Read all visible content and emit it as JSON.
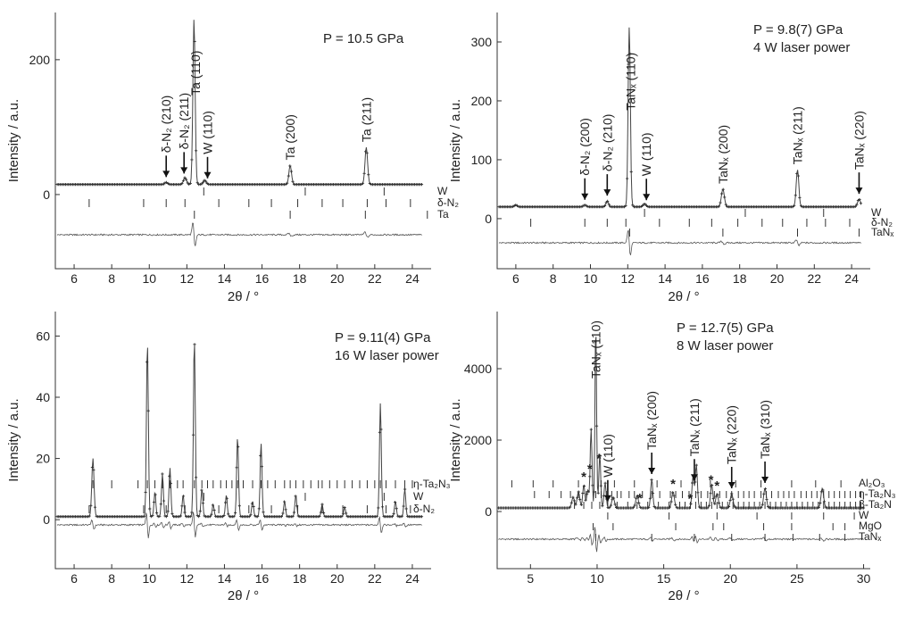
{
  "figure": {
    "x_axis_label": "2θ / °",
    "y_axis_label": "Intensity / a.u."
  },
  "chart_data": [
    {
      "type": "line",
      "panel": "top-left",
      "annotation": [
        "P = 10.5 GPa"
      ],
      "xlim": [
        5,
        25
      ],
      "ylim": [
        -110,
        270
      ],
      "x_ticks": [
        6,
        8,
        10,
        12,
        14,
        16,
        18,
        20,
        22,
        24
      ],
      "y_ticks": [
        0,
        200
      ],
      "baseline": 15,
      "diff_offset": -85,
      "peaks": [
        [
          10.9,
          3,
          0.08
        ],
        [
          11.9,
          10,
          0.08
        ],
        [
          12.38,
          245,
          0.06
        ],
        [
          12.95,
          6,
          0.08
        ],
        [
          17.5,
          28,
          0.07
        ],
        [
          21.55,
          55,
          0.07
        ]
      ],
      "peak_labels": [
        {
          "label": "δ-N₂ (210)",
          "x": 10.9,
          "arrow": true
        },
        {
          "label": "δ-N₂ (211)",
          "x": 11.85,
          "arrow": true
        },
        {
          "label": "Ta (110)",
          "x": 12.45,
          "arrow": false
        },
        {
          "label": "W (110)",
          "x": 13.1,
          "arrow": true
        },
        {
          "label": "Ta (200)",
          "x": 17.5,
          "arrow": false
        },
        {
          "label": "Ta (211)",
          "x": 21.55,
          "arrow": false
        }
      ],
      "phases": [
        {
          "name": "W",
          "ticks": [
            12.9,
            18.3,
            22.5
          ]
        },
        {
          "name": "δ-N₂",
          "ticks": [
            6.8,
            9.7,
            10.9,
            11.9,
            13.7,
            15.3,
            16.5,
            17.9,
            19.2,
            20.3,
            21.6,
            22.6,
            23.9
          ]
        },
        {
          "name": "Ta",
          "ticks": [
            12.4,
            17.5,
            21.5,
            24.8
          ]
        }
      ]
    },
    {
      "type": "line",
      "panel": "top-right",
      "annotation": [
        "P = 9.8(7) GPa",
        "4 W laser power"
      ],
      "xlim": [
        5,
        25
      ],
      "ylim": [
        -85,
        350
      ],
      "x_ticks": [
        6,
        8,
        10,
        12,
        14,
        16,
        18,
        20,
        22,
        24
      ],
      "y_ticks": [
        0,
        100,
        200,
        300
      ],
      "baseline": 20,
      "diff_offset": -70,
      "peaks": [
        [
          6.0,
          3,
          0.08
        ],
        [
          9.7,
          3,
          0.08
        ],
        [
          10.9,
          10,
          0.07
        ],
        [
          12.08,
          305,
          0.06
        ],
        [
          12.9,
          5,
          0.08
        ],
        [
          17.1,
          30,
          0.08
        ],
        [
          21.1,
          63,
          0.07
        ],
        [
          24.4,
          13,
          0.08
        ]
      ],
      "peak_labels": [
        {
          "label": "δ-N₂ (200)",
          "x": 9.7,
          "arrow": true
        },
        {
          "label": "δ-N₂ (210)",
          "x": 10.9,
          "arrow": true
        },
        {
          "label": "TaNₓ (110)",
          "x": 12.15,
          "arrow": false
        },
        {
          "label": "W (110)",
          "x": 13.0,
          "arrow": true
        },
        {
          "label": "TaNₓ (200)",
          "x": 17.1,
          "arrow": false
        },
        {
          "label": "TaNₓ (211)",
          "x": 21.1,
          "arrow": false
        },
        {
          "label": "TaNₓ (220)",
          "x": 24.4,
          "arrow": true
        }
      ],
      "phases": [
        {
          "name": "W",
          "ticks": [
            12.9,
            18.3,
            22.5
          ]
        },
        {
          "name": "δ-N₂",
          "ticks": [
            6.8,
            9.7,
            10.9,
            11.9,
            13.7,
            15.3,
            16.5,
            17.9,
            19.2,
            20.3,
            21.6,
            22.6,
            23.9
          ]
        },
        {
          "name": "TaNₓ",
          "ticks": [
            12.1,
            17.1,
            21.1,
            24.4
          ]
        }
      ]
    },
    {
      "type": "line",
      "panel": "bottom-left",
      "annotation": [
        "P = 9.11(4) GPa",
        "16 W laser power"
      ],
      "xlim": [
        5,
        25
      ],
      "ylim": [
        -16,
        68
      ],
      "x_ticks": [
        6,
        8,
        10,
        12,
        14,
        16,
        18,
        20,
        22,
        24
      ],
      "y_ticks": [
        0,
        20,
        40,
        60
      ],
      "baseline": 1,
      "diff_offset": -12,
      "peaks": [
        [
          7.0,
          19,
          0.06
        ],
        [
          9.9,
          57,
          0.05
        ],
        [
          10.3,
          8,
          0.05
        ],
        [
          10.7,
          14,
          0.05
        ],
        [
          11.1,
          16,
          0.05
        ],
        [
          11.8,
          7,
          0.05
        ],
        [
          12.4,
          58,
          0.05
        ],
        [
          12.8,
          9,
          0.05
        ],
        [
          13.4,
          4,
          0.05
        ],
        [
          14.1,
          7,
          0.05
        ],
        [
          14.7,
          26,
          0.05
        ],
        [
          15.5,
          5,
          0.05
        ],
        [
          15.95,
          24,
          0.05
        ],
        [
          17.2,
          5,
          0.05
        ],
        [
          17.8,
          7,
          0.05
        ],
        [
          19.2,
          4,
          0.05
        ],
        [
          20.4,
          3,
          0.05
        ],
        [
          22.3,
          37,
          0.05
        ],
        [
          23.1,
          5,
          0.05
        ],
        [
          23.6,
          9,
          0.05
        ]
      ],
      "peak_labels": [],
      "phases": [
        {
          "name": "η-Ta₂N₃",
          "ticks": [
            7.0,
            8.0,
            9.4,
            9.9,
            10.3,
            10.7,
            11.1,
            11.5,
            11.8,
            12.4,
            12.8,
            13.1,
            13.4,
            13.8,
            14.1,
            14.4,
            14.7,
            15.0,
            15.5,
            15.95,
            16.3,
            16.7,
            17.2,
            17.5,
            17.8,
            18.2,
            18.6,
            19.0,
            19.2,
            19.6,
            20.0,
            20.4,
            20.8,
            21.2,
            21.6,
            22.0,
            22.3,
            22.6,
            23.1,
            23.6,
            24.0
          ]
        },
        {
          "name": "W",
          "ticks": [
            12.9,
            18.3,
            22.5
          ]
        },
        {
          "name": "δ-N₂",
          "ticks": [
            6.8,
            9.7,
            10.9,
            11.9,
            13.7,
            15.3,
            16.5,
            17.9,
            19.2,
            20.3,
            21.6,
            22.6,
            23.9
          ]
        }
      ]
    },
    {
      "type": "line",
      "panel": "bottom-right",
      "annotation": [
        "P = 12.7(5) GPa",
        "8 W laser power"
      ],
      "xlim": [
        2.5,
        30.5
      ],
      "ylim": [
        -1600,
        5600
      ],
      "x_ticks": [
        5,
        10,
        15,
        20,
        25,
        30
      ],
      "y_ticks": [
        0,
        2000,
        4000
      ],
      "baseline": 100,
      "diff_offset": -1300,
      "peaks": [
        [
          8.2,
          300,
          0.1
        ],
        [
          8.6,
          450,
          0.1
        ],
        [
          9.0,
          650,
          0.08
        ],
        [
          9.3,
          500,
          0.08
        ],
        [
          9.55,
          2200,
          0.07
        ],
        [
          9.9,
          5200,
          0.06
        ],
        [
          10.2,
          1500,
          0.07
        ],
        [
          10.6,
          700,
          0.08
        ],
        [
          11.2,
          300,
          0.1
        ],
        [
          13.0,
          350,
          0.1
        ],
        [
          14.1,
          800,
          0.08
        ],
        [
          15.7,
          450,
          0.1
        ],
        [
          17.2,
          900,
          0.08
        ],
        [
          17.45,
          1200,
          0.08
        ],
        [
          18.6,
          650,
          0.09
        ],
        [
          19.0,
          400,
          0.1
        ],
        [
          20.1,
          400,
          0.1
        ],
        [
          22.6,
          550,
          0.1
        ],
        [
          26.9,
          550,
          0.1
        ]
      ],
      "peak_labels": [
        {
          "label": "TaNₓ (110)",
          "x": 9.9,
          "arrow": false
        },
        {
          "label": "W (110)",
          "x": 10.8,
          "arrow": true
        },
        {
          "label": "TaNₓ (200)",
          "x": 14.1,
          "arrow": true
        },
        {
          "label": "TaNₓ (211)",
          "x": 17.3,
          "arrow": true
        },
        {
          "label": "TaNₓ (220)",
          "x": 20.1,
          "arrow": true
        },
        {
          "label": "TaNₓ (310)",
          "x": 22.6,
          "arrow": true
        }
      ],
      "star_positions": [
        9.0,
        9.45,
        10.15,
        13.2,
        15.7,
        17.0,
        18.55,
        19.0
      ],
      "phases": [
        {
          "name": "Al₂O₃",
          "ticks": [
            3.6,
            5.2,
            6.7,
            8.6,
            10.3,
            11.3,
            12.8,
            14.5,
            16.3,
            18.5,
            20.4,
            22.3,
            24.6,
            26.4,
            28.3
          ]
        },
        {
          "name": "η-Ta₂N₃",
          "ticks": [
            5.3,
            6.4,
            7.3,
            8.0,
            8.6,
            9.2,
            9.9,
            10.3,
            10.7,
            11.1,
            11.5,
            11.8,
            12.4,
            12.8,
            13.4,
            14.1,
            14.7,
            15.5,
            15.9,
            16.4,
            16.9,
            17.4,
            17.8,
            18.3,
            18.8,
            19.2,
            19.7,
            20.1,
            20.6,
            21.0,
            21.4,
            21.8,
            22.3,
            22.7,
            23.1,
            23.6,
            24.0,
            24.4,
            24.8,
            25.3,
            25.7,
            26.1,
            26.5,
            27.0,
            27.4,
            27.8,
            28.2,
            28.6,
            29.0,
            29.4,
            29.8
          ]
        },
        {
          "name": "β-Ta₂N",
          "ticks": [
            8.3,
            9.0,
            9.6,
            10.2,
            10.8,
            11.5,
            12.3,
            13.0,
            13.8,
            14.6,
            15.4,
            16.2,
            16.6,
            17.0,
            17.4,
            17.8,
            18.2,
            18.6,
            19.0,
            19.4,
            19.8,
            20.2,
            20.6,
            21.0,
            21.4,
            21.8,
            22.2,
            22.6,
            23.0,
            23.4,
            23.8,
            24.2,
            24.6,
            25.0,
            25.4,
            25.8,
            26.2,
            26.6,
            27.0,
            27.4,
            27.8,
            28.2,
            28.6,
            29.0,
            29.4,
            29.8
          ]
        },
        {
          "name": "W",
          "ticks": [
            10.8,
            15.4,
            19.0,
            22.0,
            24.6,
            27.0,
            29.3
          ]
        },
        {
          "name": "MgO",
          "ticks": [
            9.7,
            11.2,
            15.9,
            18.7,
            19.5,
            22.5,
            24.6,
            27.7,
            28.6
          ]
        },
        {
          "name": "TaNₓ",
          "ticks": [
            9.9,
            14.1,
            17.3,
            20.1,
            22.6,
            24.7,
            26.7,
            28.6
          ]
        }
      ]
    }
  ]
}
